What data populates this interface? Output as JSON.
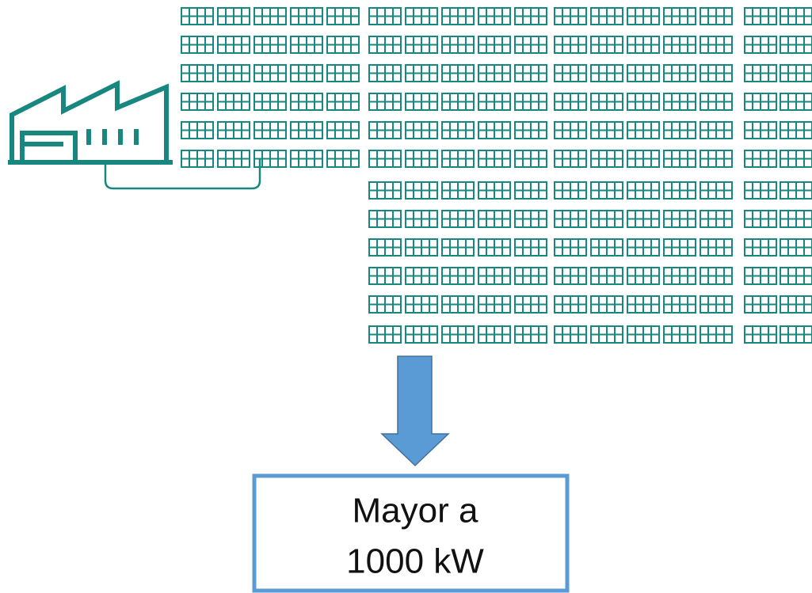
{
  "box": {
    "lines": [
      "Mayor a",
      "1000 kW"
    ]
  }
}
